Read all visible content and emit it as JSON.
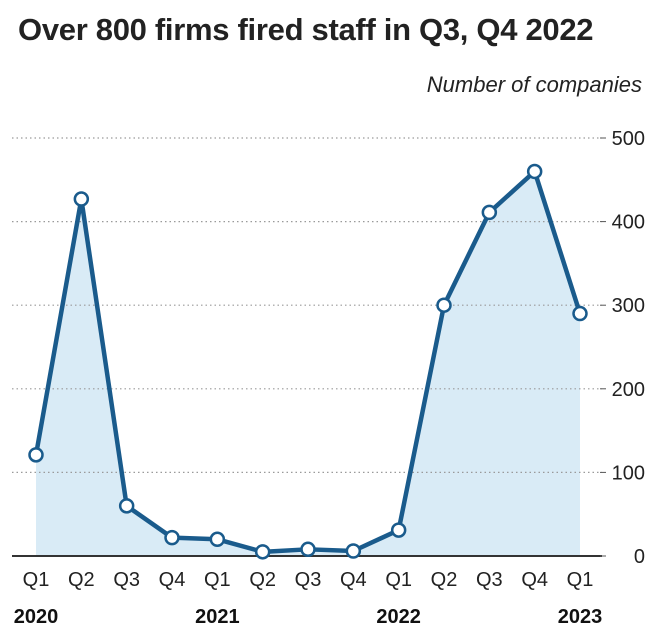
{
  "title": "Over 800 firms fired staff in Q3, Q4 2022",
  "unit_label": "Number of companies",
  "colors": {
    "line": "#1a5b8c",
    "area": "#d9ebf6",
    "grid": "#9a9a9a",
    "marker_fill": "#ffffff"
  },
  "chart_data": {
    "type": "area",
    "title": "Over 800 firms fired staff in Q3, Q4 2022",
    "ylabel": "Number of companies",
    "xlabel": "",
    "categories": [
      "Q1",
      "Q2",
      "Q3",
      "Q4",
      "Q1",
      "Q2",
      "Q3",
      "Q4",
      "Q1",
      "Q2",
      "Q3",
      "Q4",
      "Q1"
    ],
    "years": [
      {
        "label": "2020",
        "index": 0
      },
      {
        "label": "2021",
        "index": 4
      },
      {
        "label": "2022",
        "index": 8
      },
      {
        "label": "2023",
        "index": 12
      }
    ],
    "series": [
      {
        "values": [
          121,
          427,
          60,
          22,
          20,
          5,
          8,
          6,
          31,
          300,
          411,
          460,
          290
        ]
      }
    ],
    "ylim": [
      0,
      500
    ],
    "yticks": [
      "0",
      "100",
      "200",
      "300",
      "400",
      "500"
    ],
    "grid": true,
    "markers": true
  }
}
